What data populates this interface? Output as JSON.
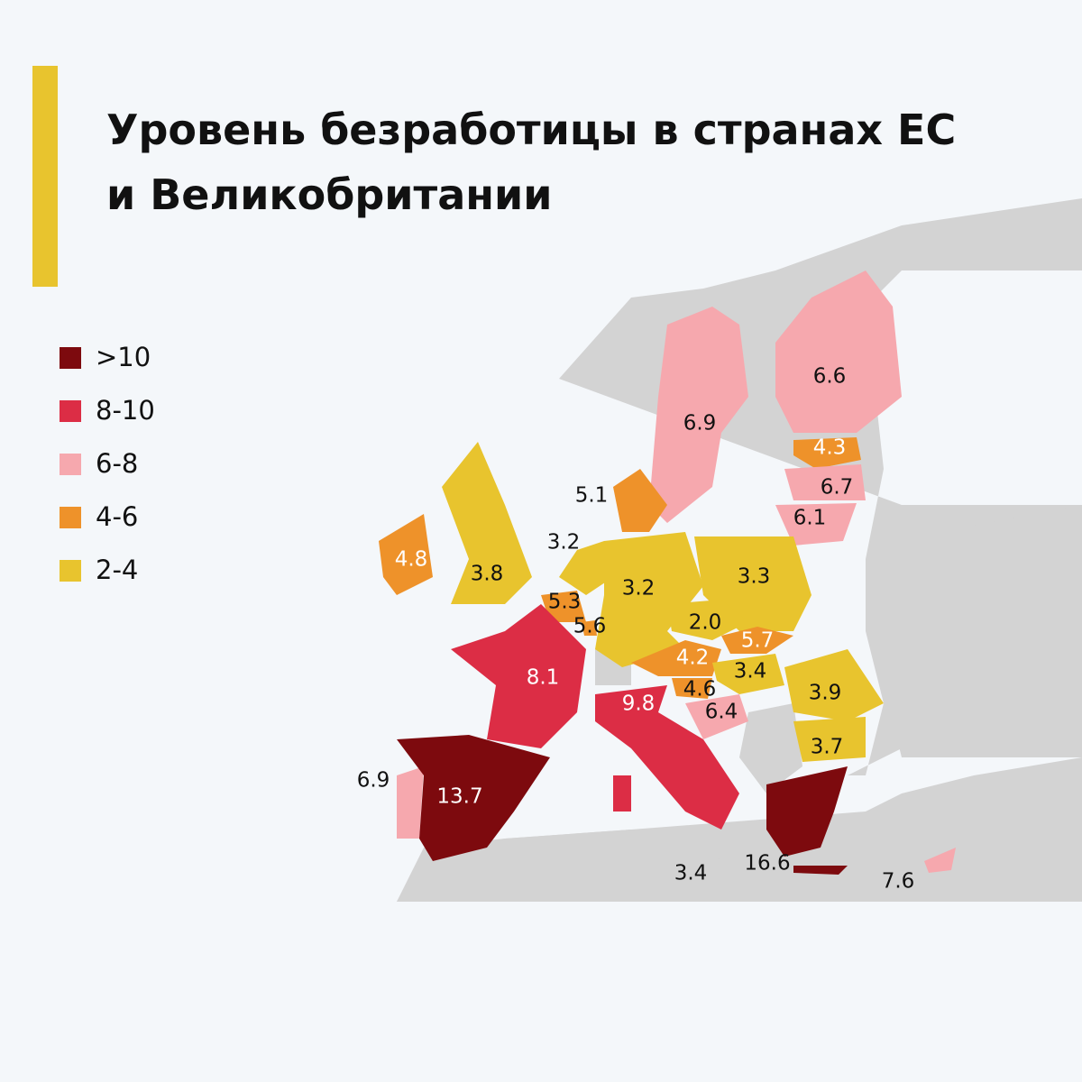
{
  "title": "Уровень безработицы в странах ЕС и Великобритании",
  "legend": [
    {
      "label": ">10",
      "color": "#7d0a0e"
    },
    {
      "label": "8-10",
      "color": "#dc2d45"
    },
    {
      "label": "6-8",
      "color": "#f6a8ae"
    },
    {
      "label": "4-6",
      "color": "#ee922a"
    },
    {
      "label": "2-4",
      "color": "#e8c42e"
    }
  ],
  "regions": [
    {
      "value": "6.9"
    },
    {
      "value": "6.6"
    },
    {
      "value": "4.3"
    },
    {
      "value": "6.7"
    },
    {
      "value": "6.1"
    },
    {
      "value": "5.1"
    },
    {
      "value": "3.2"
    },
    {
      "value": "3.8"
    },
    {
      "value": "4.8"
    },
    {
      "value": "3.2"
    },
    {
      "value": "3.3"
    },
    {
      "value": "5.3"
    },
    {
      "value": "5.6"
    },
    {
      "value": "2.0"
    },
    {
      "value": "5.7"
    },
    {
      "value": "4.2"
    },
    {
      "value": "3.4"
    },
    {
      "value": "4.6"
    },
    {
      "value": "6.4"
    },
    {
      "value": "3.9"
    },
    {
      "value": "3.7"
    },
    {
      "value": "8.1"
    },
    {
      "value": "9.8"
    },
    {
      "value": "6.9"
    },
    {
      "value": "13.7"
    },
    {
      "value": "3.4"
    },
    {
      "value": "16.6"
    },
    {
      "value": "7.6"
    }
  ]
}
